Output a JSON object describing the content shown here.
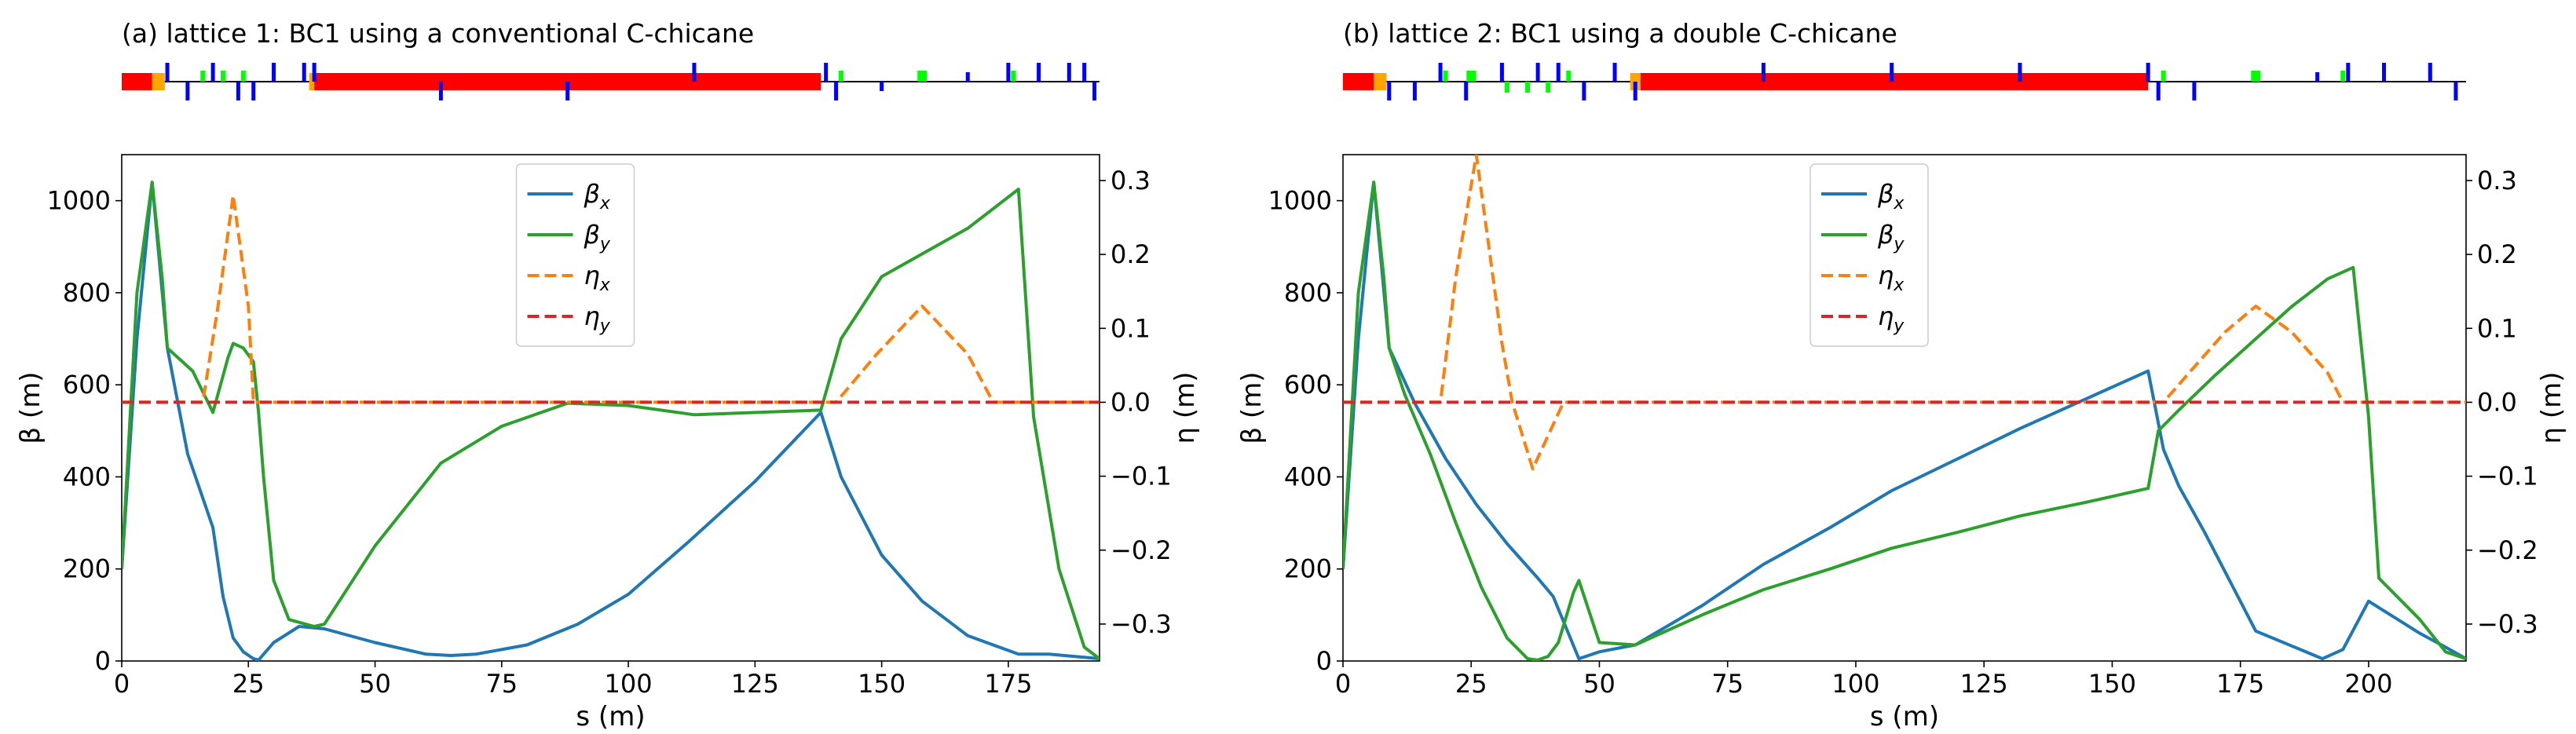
{
  "chart_data": [
    {
      "type": "line",
      "title": "(a) lattice 1: BC1 using a conventional C-chicane",
      "xlabel": "s (m)",
      "ylabel_left": "β (m)",
      "ylabel_right": "η (m)",
      "xlim": [
        0,
        193
      ],
      "ylim_left": [
        0,
        1100
      ],
      "ylim_right": [
        -0.35,
        0.335
      ],
      "xticks": [
        0,
        25,
        50,
        75,
        100,
        125,
        150,
        175
      ],
      "yticks_left": [
        0,
        200,
        400,
        600,
        800,
        1000
      ],
      "yticks_right": [
        -0.3,
        -0.2,
        -0.1,
        0.0,
        0.1,
        0.2,
        0.3
      ],
      "legend_position": "top-center",
      "grid": false,
      "series": [
        {
          "name": "βx",
          "axis": "left",
          "color": "#1f77b4",
          "dash": "solid",
          "x": [
            0,
            3,
            6,
            9,
            13,
            18,
            20,
            22,
            24,
            26,
            27,
            30,
            35,
            40,
            50,
            60,
            65,
            70,
            80,
            90,
            100,
            112,
            125,
            138,
            142,
            150,
            158,
            167,
            177,
            183,
            193
          ],
          "y": [
            200,
            700,
            1040,
            680,
            450,
            290,
            140,
            50,
            20,
            5,
            2,
            40,
            75,
            70,
            40,
            15,
            12,
            15,
            35,
            80,
            145,
            260,
            390,
            540,
            400,
            230,
            130,
            55,
            15,
            15,
            5
          ]
        },
        {
          "name": "βy",
          "axis": "left",
          "color": "#2ca02c",
          "dash": "solid",
          "x": [
            0,
            3,
            6,
            8,
            9,
            10,
            14,
            18,
            21,
            22,
            24,
            26,
            27,
            28,
            30,
            33,
            38,
            40,
            50,
            63,
            75,
            88,
            100,
            113,
            138,
            142,
            150,
            167,
            177,
            180,
            185,
            190,
            193
          ],
          "y": [
            200,
            800,
            1040,
            830,
            680,
            670,
            630,
            540,
            660,
            690,
            680,
            650,
            540,
            400,
            175,
            90,
            75,
            80,
            250,
            430,
            510,
            560,
            555,
            535,
            545,
            700,
            835,
            940,
            1025,
            530,
            200,
            30,
            5
          ]
        },
        {
          "name": "ηx",
          "axis": "right",
          "color": "#ff7f0e",
          "dash": "dashed",
          "x": [
            0,
            16,
            19,
            22,
            25,
            26,
            30,
            139,
            141,
            149,
            158,
            167,
            172,
            193
          ],
          "y": [
            0,
            0,
            0.13,
            0.28,
            0.13,
            0.0,
            0.0,
            0.0,
            0.0,
            0.065,
            0.13,
            0.065,
            0.0,
            0.0
          ]
        },
        {
          "name": "ηy",
          "axis": "right",
          "color": "#d62728",
          "dash": "dashed",
          "x": [
            0,
            193
          ],
          "y": [
            0,
            0
          ]
        }
      ]
    },
    {
      "type": "line",
      "title": "(b) lattice 2: BC1 using a double C-chicane",
      "xlabel": "s (m)",
      "ylabel_left": "β (m)",
      "ylabel_right": "η (m)",
      "xlim": [
        0,
        219
      ],
      "ylim_left": [
        0,
        1100
      ],
      "ylim_right": [
        -0.35,
        0.335
      ],
      "xticks": [
        0,
        25,
        50,
        75,
        100,
        125,
        150,
        175,
        200
      ],
      "yticks_left": [
        0,
        200,
        400,
        600,
        800,
        1000
      ],
      "yticks_right": [
        -0.3,
        -0.2,
        -0.1,
        0.0,
        0.1,
        0.2,
        0.3
      ],
      "legend_position": "top-center",
      "grid": false,
      "series": [
        {
          "name": "βx",
          "axis": "left",
          "color": "#1f77b4",
          "dash": "solid",
          "x": [
            0,
            3,
            6,
            9,
            14,
            20,
            26,
            32,
            38,
            41,
            46,
            50,
            57,
            70,
            82,
            95,
            107,
            120,
            132,
            145,
            157,
            160,
            163,
            168,
            178,
            191,
            195,
            200,
            205,
            210,
            215,
            219
          ],
          "y": [
            200,
            700,
            1040,
            680,
            560,
            440,
            340,
            255,
            180,
            140,
            5,
            20,
            35,
            120,
            210,
            290,
            370,
            440,
            505,
            570,
            630,
            460,
            380,
            280,
            65,
            5,
            25,
            130,
            95,
            60,
            30,
            5
          ]
        },
        {
          "name": "βy",
          "axis": "left",
          "color": "#2ca02c",
          "dash": "solid",
          "x": [
            0,
            3,
            6,
            8,
            9,
            12,
            17,
            22,
            27,
            32,
            36,
            38,
            40,
            42,
            45,
            46,
            50,
            57,
            70,
            82,
            95,
            107,
            120,
            132,
            145,
            157,
            159,
            163,
            170,
            178,
            185,
            192,
            197,
            200,
            202,
            210,
            215,
            219
          ],
          "y": [
            200,
            800,
            1040,
            830,
            680,
            580,
            450,
            300,
            160,
            50,
            5,
            2,
            10,
            40,
            150,
            175,
            40,
            35,
            100,
            155,
            200,
            245,
            280,
            315,
            345,
            375,
            500,
            545,
            620,
            700,
            770,
            830,
            855,
            530,
            180,
            90,
            20,
            5
          ]
        },
        {
          "name": "ηx",
          "axis": "right",
          "color": "#ff7f0e",
          "dash": "dashed",
          "x": [
            0,
            19,
            22,
            26,
            31,
            33,
            37,
            39,
            41,
            43,
            50,
            160,
            165,
            172,
            178,
            185,
            192,
            195,
            219
          ],
          "y": [
            0,
            0,
            0.17,
            0.335,
            0.08,
            0.0,
            -0.09,
            -0.06,
            -0.03,
            0.0,
            0.0,
            0.0,
            0.04,
            0.095,
            0.13,
            0.095,
            0.04,
            0.0,
            0.0
          ]
        },
        {
          "name": "ηy",
          "axis": "right",
          "color": "#d62728",
          "dash": "dashed",
          "x": [
            0,
            219
          ],
          "y": [
            0,
            0
          ]
        }
      ]
    }
  ],
  "lattice_colors": {
    "dipole": "#ff0000",
    "quadrupole": "#0000ff",
    "sextupole": "#00ff00",
    "cavity_edge": "#ffa500",
    "line": "#000000"
  }
}
